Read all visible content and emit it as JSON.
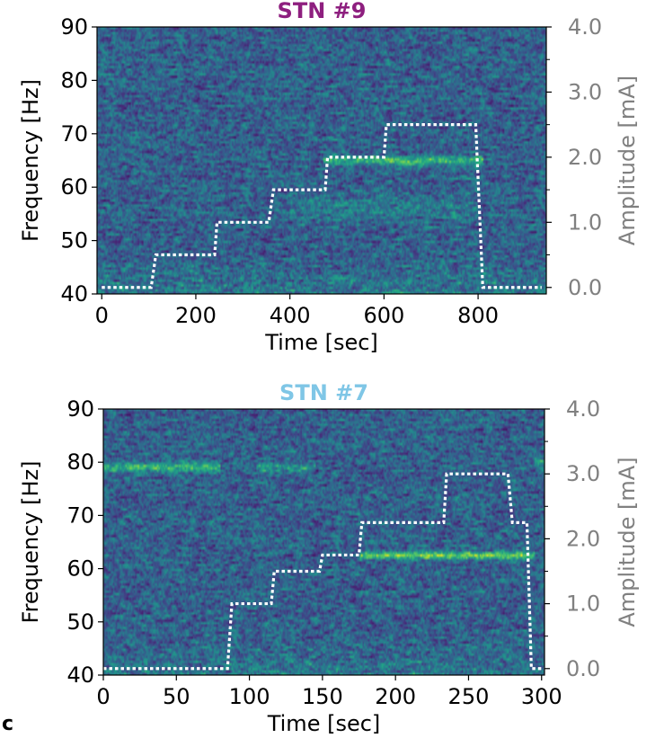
{
  "figure": {
    "panel_label": "c"
  },
  "chart_data": [
    {
      "type": "heatmap",
      "title": "STN #9",
      "title_color": "#8e1f7f",
      "xlabel": "Time [sec]",
      "ylabel": "Frequency [Hz]",
      "y2label": "Amplitude [mA]",
      "xlim": [
        -10,
        945
      ],
      "ylim": [
        40,
        90
      ],
      "y2lim": [
        -0.1,
        4.0
      ],
      "xticks": [
        0,
        200,
        400,
        600,
        800
      ],
      "yticks": [
        40,
        50,
        60,
        70,
        80,
        90
      ],
      "y2ticks": [
        "0.0",
        "1.0",
        "2.0",
        "3.0",
        "4.0"
      ],
      "y2_minor_ticks": [
        0.5,
        1.5,
        2.5,
        3.5
      ],
      "colormap": "viridis",
      "bands": [
        {
          "f": 65,
          "t0": 470,
          "t1": 810,
          "width": 0.8,
          "strength": 0.45
        },
        {
          "f": 56,
          "t0": 400,
          "t1": 800,
          "width": 2.5,
          "strength": 0.12
        }
      ],
      "amplitude_series": {
        "name": "",
        "color": "#ffffff",
        "points": [
          [
            0,
            0.0
          ],
          [
            105,
            0.0
          ],
          [
            115,
            0.5
          ],
          [
            240,
            0.5
          ],
          [
            245,
            1.0
          ],
          [
            355,
            1.0
          ],
          [
            365,
            1.5
          ],
          [
            475,
            1.5
          ],
          [
            480,
            2.0
          ],
          [
            600,
            2.0
          ],
          [
            605,
            2.5
          ],
          [
            795,
            2.5
          ],
          [
            810,
            0.0
          ],
          [
            935,
            0.0
          ]
        ]
      }
    },
    {
      "type": "heatmap",
      "title": "STN #7",
      "title_color": "#7fc6e6",
      "xlabel": "Time [sec]",
      "ylabel": "Frequency [Hz]",
      "y2label": "Amplitude [mA]",
      "xlim": [
        0,
        302
      ],
      "ylim": [
        40,
        90
      ],
      "y2lim": [
        -0.1,
        4.0
      ],
      "xticks": [
        0,
        50,
        100,
        150,
        200,
        250,
        300
      ],
      "yticks": [
        40,
        50,
        60,
        70,
        80,
        90
      ],
      "y2ticks": [
        "0.0",
        "1.0",
        "2.0",
        "3.0",
        "4.0"
      ],
      "y2_minor_ticks": [
        0.5,
        1.5,
        2.5,
        3.5
      ],
      "colormap": "viridis",
      "bands": [
        {
          "f": 79,
          "t0": 0,
          "t1": 80,
          "width": 0.9,
          "strength": 0.38
        },
        {
          "f": 79,
          "t0": 105,
          "t1": 145,
          "width": 0.9,
          "strength": 0.25
        },
        {
          "f": 62.5,
          "t0": 176,
          "t1": 295,
          "width": 0.7,
          "strength": 0.55
        },
        {
          "f": 80,
          "t0": 295,
          "t1": 302,
          "width": 0.9,
          "strength": 0.3
        }
      ],
      "amplitude_series": {
        "name": "",
        "color": "#ffffff",
        "points": [
          [
            0,
            0.0
          ],
          [
            85,
            0.0
          ],
          [
            88,
            1.0
          ],
          [
            115,
            1.0
          ],
          [
            117,
            1.5
          ],
          [
            148,
            1.5
          ],
          [
            150,
            1.75
          ],
          [
            175,
            1.75
          ],
          [
            177,
            2.25
          ],
          [
            233,
            2.25
          ],
          [
            235,
            3.0
          ],
          [
            277,
            3.0
          ],
          [
            280,
            2.25
          ],
          [
            290,
            2.25
          ],
          [
            293,
            0.0
          ],
          [
            302,
            0.0
          ]
        ]
      }
    }
  ]
}
